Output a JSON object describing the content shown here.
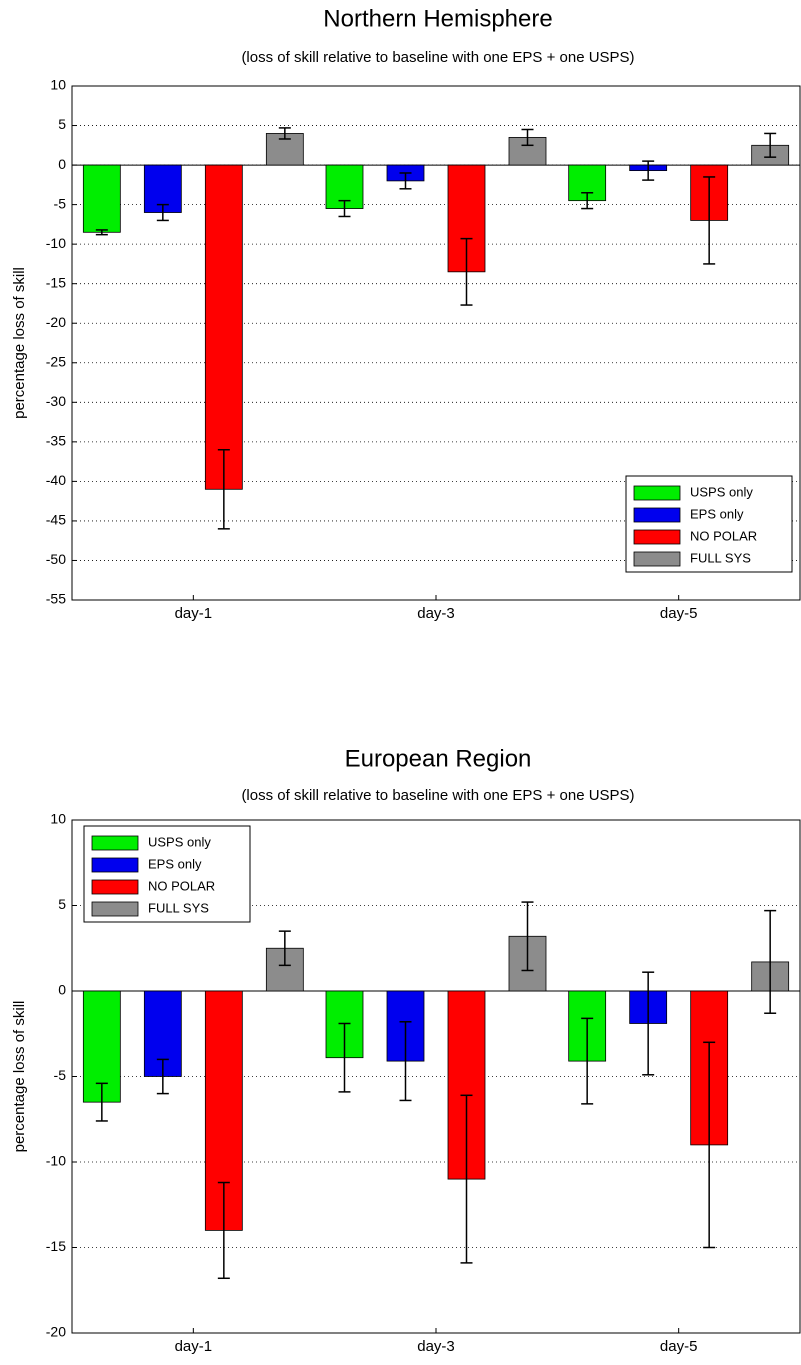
{
  "chart_data": [
    {
      "type": "bar",
      "title": "Northern Hemisphere",
      "subtitle": "(loss of skill relative to baseline with one EPS + one USPS)",
      "ylabel": "percentage loss of skill",
      "categories": [
        "day-1",
        "day-3",
        "day-5"
      ],
      "series": [
        {
          "name": "USPS only",
          "color": "#00ee00",
          "values": [
            -8.5,
            -5.5,
            -4.5
          ],
          "errors": [
            0.3,
            1,
            1
          ]
        },
        {
          "name": "EPS only",
          "color": "#0000ee",
          "values": [
            -6,
            -2,
            -0.7
          ],
          "errors": [
            1,
            1,
            1.2
          ]
        },
        {
          "name": "NO POLAR",
          "color": "#ff0000",
          "values": [
            -41,
            -13.5,
            -7
          ],
          "errors": [
            5,
            4.2,
            5.5
          ]
        },
        {
          "name": "FULL SYS",
          "color": "#8c8c8c",
          "values": [
            4,
            3.5,
            2.5
          ],
          "errors": [
            0.7,
            1,
            1.5
          ]
        }
      ],
      "ylim": [
        -55,
        10
      ],
      "yticks": [
        -55,
        -50,
        -45,
        -40,
        -35,
        -30,
        -25,
        -20,
        -15,
        -10,
        -5,
        0,
        5,
        10
      ],
      "grid": true,
      "legend": "lower right"
    },
    {
      "type": "bar",
      "title": "European Region",
      "subtitle": "(loss of skill relative to baseline with one EPS + one USPS)",
      "ylabel": "percentage loss of skill",
      "categories": [
        "day-1",
        "day-3",
        "day-5"
      ],
      "series": [
        {
          "name": "USPS only",
          "color": "#00ee00",
          "values": [
            -6.5,
            -3.9,
            -4.1
          ],
          "errors": [
            1.1,
            2,
            2.5
          ]
        },
        {
          "name": "EPS only",
          "color": "#0000ee",
          "values": [
            -5,
            -4.1,
            -1.9
          ],
          "errors": [
            1,
            2.3,
            3
          ]
        },
        {
          "name": "NO POLAR",
          "color": "#ff0000",
          "values": [
            -14,
            -11,
            -9
          ],
          "errors": [
            2.8,
            4.9,
            6
          ]
        },
        {
          "name": "FULL SYS",
          "color": "#8c8c8c",
          "values": [
            2.5,
            3.2,
            1.7
          ],
          "errors": [
            1,
            2,
            3
          ]
        }
      ],
      "ylim": [
        -20,
        10
      ],
      "yticks": [
        -20,
        -15,
        -10,
        -5,
        0,
        5,
        10
      ],
      "grid": true,
      "legend": "upper left"
    }
  ]
}
